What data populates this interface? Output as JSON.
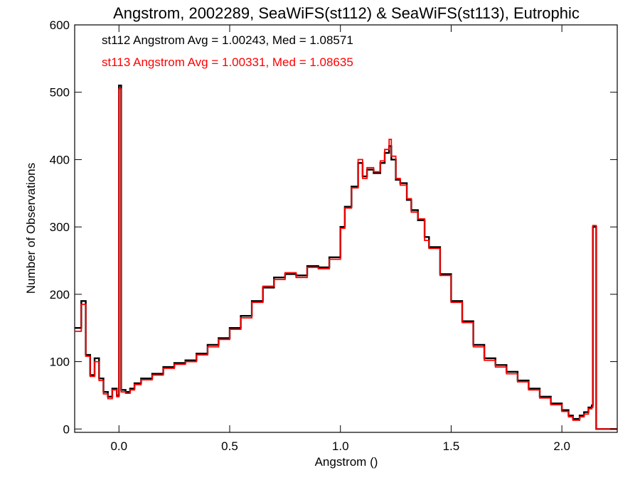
{
  "chart_data": {
    "type": "line",
    "step": true,
    "title": "Angstrom, 2002289, SeaWiFS(st112) & SeaWiFS(st113), Eutrophic",
    "xlabel": "Angstrom ()",
    "ylabel": "Number of Observations",
    "xlim": [
      -0.2,
      2.25
    ],
    "ylim": [
      -5,
      600
    ],
    "xticks": [
      "0.0",
      "0.5",
      "1.0",
      "1.5",
      "2.0"
    ],
    "yticks": [
      "0",
      "100",
      "200",
      "300",
      "400",
      "500",
      "600"
    ],
    "grid": false,
    "annotations": [
      {
        "text": "st112 Angstrom Avg = 1.00243, Med = 1.08571",
        "color": "#000000"
      },
      {
        "text": "st113 Angstrom Avg = 1.00331, Med = 1.08635",
        "color": "#ff0000"
      }
    ],
    "series": [
      {
        "color": "#000000",
        "x": [
          -0.2,
          -0.17,
          -0.15,
          -0.13,
          -0.11,
          -0.09,
          -0.07,
          -0.05,
          -0.03,
          -0.01,
          0.0,
          0.01,
          0.03,
          0.05,
          0.07,
          0.1,
          0.15,
          0.2,
          0.25,
          0.3,
          0.35,
          0.4,
          0.45,
          0.5,
          0.55,
          0.6,
          0.65,
          0.7,
          0.75,
          0.8,
          0.85,
          0.9,
          0.95,
          1.0,
          1.02,
          1.05,
          1.08,
          1.1,
          1.12,
          1.15,
          1.18,
          1.2,
          1.22,
          1.23,
          1.25,
          1.27,
          1.3,
          1.32,
          1.35,
          1.38,
          1.4,
          1.45,
          1.5,
          1.55,
          1.6,
          1.65,
          1.7,
          1.75,
          1.8,
          1.85,
          1.9,
          1.95,
          2.0,
          2.03,
          2.05,
          2.08,
          2.1,
          2.12,
          2.135,
          2.14,
          2.155,
          2.2,
          2.25
        ],
        "y": [
          150,
          190,
          110,
          80,
          105,
          75,
          55,
          48,
          60,
          50,
          510,
          58,
          55,
          60,
          68,
          75,
          82,
          92,
          98,
          102,
          112,
          125,
          135,
          150,
          168,
          190,
          210,
          225,
          230,
          228,
          242,
          240,
          255,
          300,
          330,
          360,
          395,
          375,
          385,
          380,
          395,
          410,
          420,
          400,
          370,
          365,
          340,
          325,
          310,
          285,
          270,
          230,
          190,
          160,
          125,
          105,
          95,
          85,
          72,
          60,
          48,
          38,
          28,
          20,
          15,
          20,
          25,
          32,
          35,
          300,
          0,
          0,
          0
        ]
      },
      {
        "color": "#ff0000",
        "x": [
          -0.2,
          -0.17,
          -0.15,
          -0.13,
          -0.11,
          -0.09,
          -0.07,
          -0.05,
          -0.03,
          -0.01,
          0.0,
          0.01,
          0.03,
          0.05,
          0.07,
          0.1,
          0.15,
          0.2,
          0.25,
          0.3,
          0.35,
          0.4,
          0.45,
          0.5,
          0.55,
          0.6,
          0.65,
          0.7,
          0.75,
          0.8,
          0.85,
          0.9,
          0.95,
          1.0,
          1.02,
          1.05,
          1.08,
          1.1,
          1.12,
          1.15,
          1.18,
          1.2,
          1.22,
          1.23,
          1.25,
          1.27,
          1.3,
          1.32,
          1.35,
          1.38,
          1.4,
          1.45,
          1.5,
          1.55,
          1.6,
          1.65,
          1.7,
          1.75,
          1.8,
          1.85,
          1.9,
          1.95,
          2.0,
          2.03,
          2.05,
          2.08,
          2.1,
          2.12,
          2.135,
          2.14,
          2.155,
          2.2,
          2.25
        ],
        "y": [
          145,
          185,
          108,
          78,
          100,
          72,
          52,
          45,
          58,
          48,
          505,
          55,
          53,
          58,
          66,
          73,
          80,
          90,
          96,
          100,
          110,
          122,
          133,
          148,
          165,
          188,
          212,
          222,
          232,
          225,
          240,
          238,
          252,
          298,
          328,
          358,
          400,
          372,
          388,
          382,
          398,
          415,
          430,
          405,
          372,
          362,
          342,
          322,
          312,
          280,
          268,
          228,
          188,
          158,
          122,
          102,
          92,
          82,
          70,
          58,
          46,
          36,
          26,
          18,
          13,
          18,
          22,
          30,
          32,
          302,
          0,
          0,
          0
        ]
      }
    ]
  }
}
